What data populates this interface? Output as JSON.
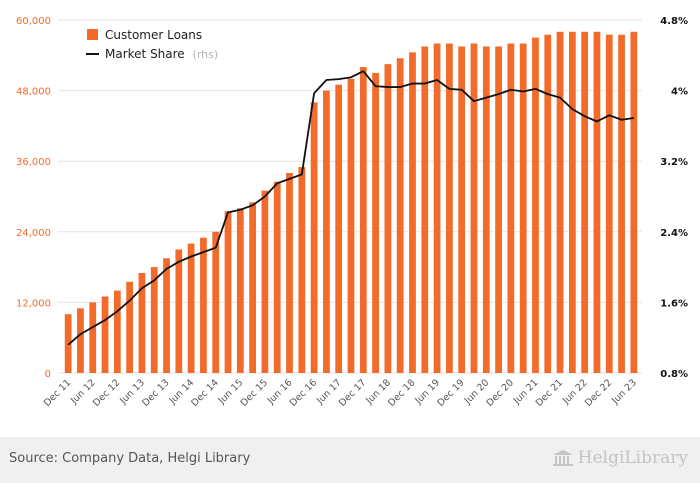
{
  "chart_data": {
    "type": "bar+line",
    "categories": [
      "Dec 11",
      "Mar 12",
      "Jun 12",
      "Sep 12",
      "Dec 12",
      "Mar 13",
      "Jun 13",
      "Sep 13",
      "Dec 13",
      "Mar 14",
      "Jun 14",
      "Sep 14",
      "Dec 14",
      "Mar 15",
      "Jun 15",
      "Sep 15",
      "Dec 15",
      "Mar 16",
      "Jun 16",
      "Sep 16",
      "Dec 16",
      "Mar 17",
      "Jun 17",
      "Sep 17",
      "Dec 17",
      "Mar 18",
      "Jun 18",
      "Sep 18",
      "Dec 18",
      "Mar 19",
      "Jun 19",
      "Sep 19",
      "Dec 19",
      "Mar 20",
      "Jun 20",
      "Sep 20",
      "Dec 20",
      "Mar 21",
      "Jun 21",
      "Sep 21",
      "Dec 21",
      "Mar 22",
      "Jun 22",
      "Sep 22",
      "Dec 22",
      "Mar 23",
      "Jun 23"
    ],
    "x_tick_labels": [
      "Dec 11",
      "Jun 12",
      "Dec 12",
      "Jun 13",
      "Dec 13",
      "Jun 14",
      "Dec 14",
      "Jun 15",
      "Dec 15",
      "Jun 16",
      "Dec 16",
      "Jun 17",
      "Dec 17",
      "Jun 18",
      "Dec 18",
      "Jun 19",
      "Dec 19",
      "Jun 20",
      "Dec 20",
      "Jun 21",
      "Dec 21",
      "Jun 22",
      "Dec 22",
      "Jun 23"
    ],
    "series": [
      {
        "name": "Customer Loans",
        "axis": "left",
        "kind": "bar",
        "color": "#f26b2a",
        "values": [
          10000,
          11000,
          12000,
          13000,
          14000,
          15500,
          17000,
          18000,
          19500,
          21000,
          22000,
          23000,
          24000,
          27500,
          28000,
          29000,
          31000,
          32500,
          34000,
          35000,
          46000,
          48000,
          49000,
          50000,
          52000,
          51000,
          52500,
          53500,
          54500,
          55500,
          56000,
          56000,
          55500,
          56000,
          55500,
          55500,
          56000,
          56000,
          57000,
          57500,
          58000,
          58000,
          58000,
          58000,
          57500,
          57500,
          58000
        ]
      },
      {
        "name": "Market Share",
        "name_suffix": "(rhs)",
        "axis": "right",
        "kind": "line",
        "color": "#111111",
        "values": [
          1.12,
          1.24,
          1.32,
          1.4,
          1.5,
          1.62,
          1.76,
          1.85,
          1.98,
          2.06,
          2.12,
          2.17,
          2.22,
          2.62,
          2.65,
          2.7,
          2.8,
          2.95,
          3.0,
          3.05,
          3.97,
          4.12,
          4.13,
          4.15,
          4.22,
          4.05,
          4.04,
          4.04,
          4.08,
          4.08,
          4.12,
          4.02,
          4.01,
          3.88,
          3.92,
          3.96,
          4.01,
          3.99,
          4.02,
          3.96,
          3.92,
          3.79,
          3.71,
          3.65,
          3.72,
          3.67,
          3.69
        ]
      }
    ],
    "y_left": {
      "min": 0,
      "max": 60000,
      "ticks": [
        0,
        12000,
        24000,
        36000,
        48000,
        60000
      ],
      "tick_labels": [
        "0",
        "12,000",
        "24,000",
        "36,000",
        "48,000",
        "60,000"
      ],
      "label_color": "#f26b2a"
    },
    "y_right": {
      "min": 0.8,
      "max": 4.8,
      "ticks": [
        0.8,
        1.6,
        2.4,
        3.2,
        4.0,
        4.8
      ],
      "tick_labels": [
        "0.8%",
        "1.6%",
        "2.4%",
        "3.2%",
        "4%",
        "4.8%"
      ]
    },
    "grid": true,
    "legend": "top-left",
    "xlabel": "",
    "ylabel": "",
    "title": ""
  },
  "footer": {
    "source": "Source: Company Data, Helgi Library",
    "brand": "HelgiLibrary"
  }
}
